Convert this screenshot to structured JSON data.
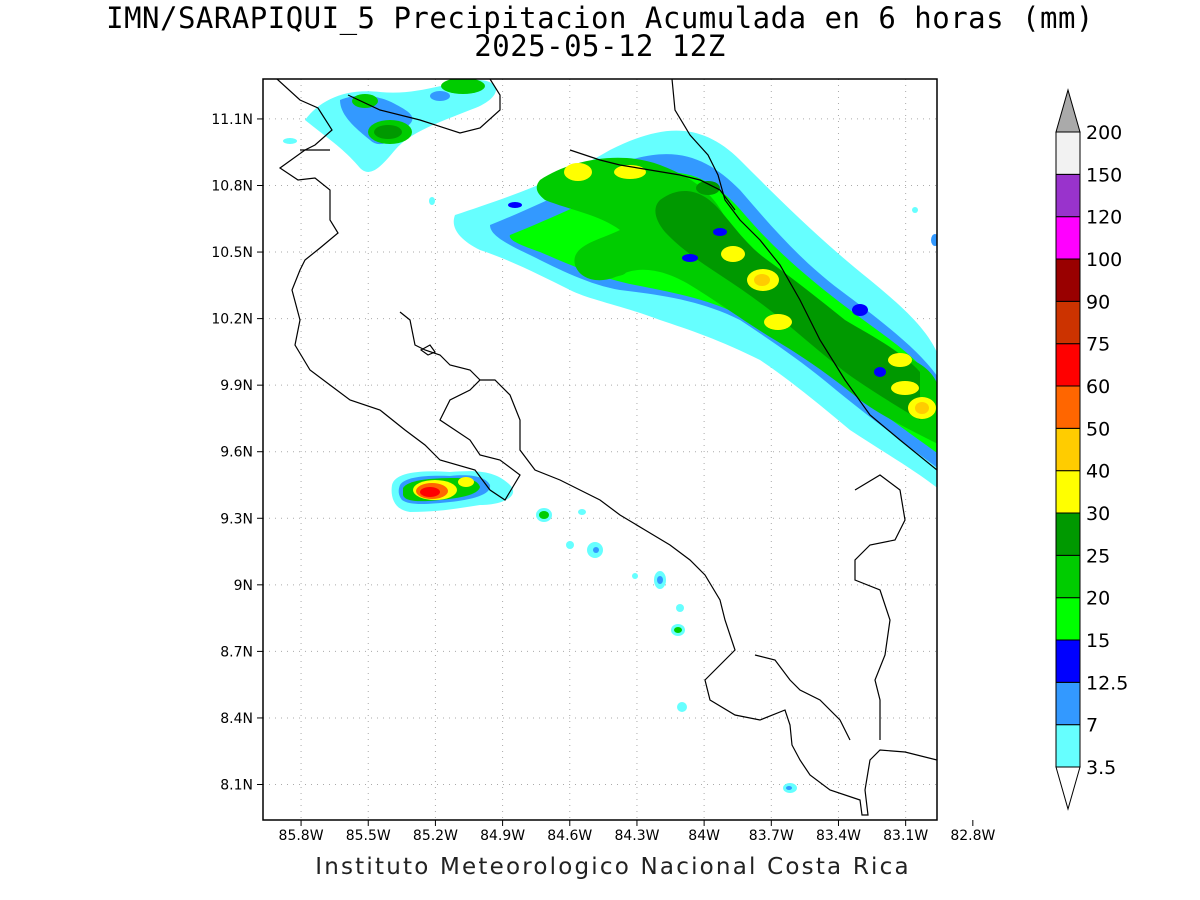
{
  "title": {
    "line1": "IMN/SARAPIQUI_5 Precipitacion Acumulada en 6 horas (mm)",
    "line2": "2025-05-12 12Z"
  },
  "footer": "Instituto Meteorologico Nacional Costa Rica",
  "map": {
    "lon_ticks": [
      "85.8W",
      "85.5W",
      "85.2W",
      "84.9W",
      "84.6W",
      "84.3W",
      "84W",
      "83.7W",
      "83.4W",
      "83.1W",
      "82.8W"
    ],
    "lat_ticks": [
      "11.1N",
      "10.8N",
      "10.5N",
      "10.2N",
      "9.9N",
      "9.6N",
      "9.3N",
      "9N",
      "8.7N",
      "8.4N",
      "8.1N"
    ],
    "lon_range": [
      -85.97,
      -82.96
    ],
    "lat_range": [
      7.94,
      11.28
    ],
    "grid": "dotted"
  },
  "colorbar": {
    "levels": [
      "3.5",
      "7",
      "12.5",
      "15",
      "20",
      "25",
      "30",
      "40",
      "50",
      "60",
      "75",
      "90",
      "100",
      "120",
      "150",
      "200"
    ],
    "colors": [
      "#ffffff",
      "#66ffff",
      "#3399ff",
      "#0000ff",
      "#00ff00",
      "#00cc00",
      "#009900",
      "#ffff00",
      "#ffcc00",
      "#ff6600",
      "#ff0000",
      "#cc3300",
      "#990000",
      "#ff00ff",
      "#9933cc",
      "#f2f2f2",
      "#aaaaaa"
    ],
    "units": "mm"
  }
}
